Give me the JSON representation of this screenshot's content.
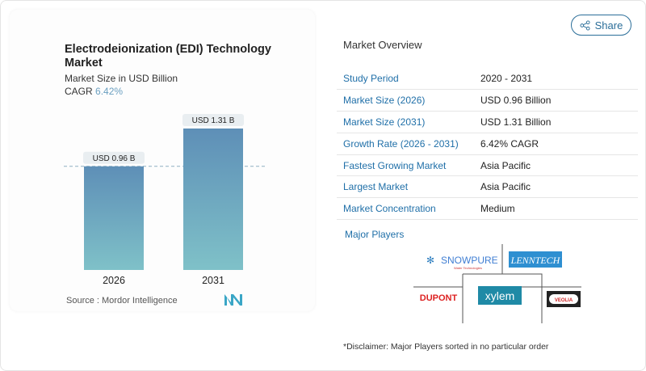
{
  "chart": {
    "title": "Electrodeionization (EDI) Technology Market",
    "subtitle": "Market Size in USD Billion",
    "cagr_label": "CAGR",
    "cagr_value": "6.42%",
    "source": "Source :  Mordor Intelligence"
  },
  "chart_data": {
    "type": "bar",
    "title": "Electrodeionization (EDI) Technology Market",
    "subtitle": "Market Size in USD Billion",
    "categories": [
      "2026",
      "2031"
    ],
    "values": [
      0.96,
      1.31
    ],
    "data_labels": [
      "USD 0.96 B",
      "USD 1.31 B"
    ],
    "reference_line": 0.96,
    "bar_color_top": "#5e8fb7",
    "bar_color_bottom": "#7fc1c8",
    "grid": false
  },
  "share": {
    "label": "Share",
    "icon": "share-icon"
  },
  "overview": {
    "heading": "Market Overview",
    "rows": [
      {
        "label": "Study Period",
        "value": "2020 - 2031"
      },
      {
        "label": "Market Size (2026)",
        "value": "USD 0.96 Billion"
      },
      {
        "label": "Market Size (2031)",
        "value": "USD 1.31 Billion"
      },
      {
        "label": "Growth Rate (2026 - 2031)",
        "value": "6.42% CAGR"
      },
      {
        "label": "Fastest Growing Market",
        "value": "Asia Pacific"
      },
      {
        "label": "Largest Market",
        "value": "Asia Pacific"
      },
      {
        "label": "Market Concentration",
        "value": "Medium"
      }
    ]
  },
  "players": {
    "heading": "Major Players",
    "logos": [
      "SNOWPURE",
      "Water Technologies",
      "LENNTECH",
      "DUPONT",
      "xylem",
      "VEOLIA"
    ]
  },
  "disclaimer": "*Disclaimer: Major Players sorted in no particular order",
  "colors": {
    "accent": "#1f6fa8"
  }
}
